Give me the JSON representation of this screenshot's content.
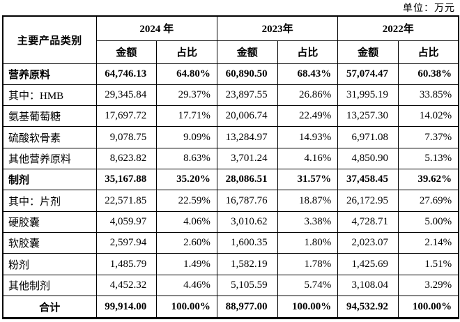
{
  "unit_label": "单位：万元",
  "table": {
    "header": {
      "category_label": "主要产品类别",
      "years": [
        "2024 年",
        "2023年",
        "2022年"
      ],
      "amount_label": "金额",
      "ratio_label": "占比"
    },
    "rows": [
      {
        "label": "营养原料",
        "values": [
          "64,746.13",
          "64.80%",
          "60,890.50",
          "68.43%",
          "57,074.47",
          "60.38%"
        ]
      },
      {
        "label": "其中：HMB",
        "values": [
          "29,345.84",
          "29.37%",
          "23,897.55",
          "26.86%",
          "31,995.19",
          "33.85%"
        ]
      },
      {
        "label": "氨基葡萄糖",
        "values": [
          "17,697.72",
          "17.71%",
          "20,006.74",
          "22.49%",
          "13,257.30",
          "14.02%"
        ]
      },
      {
        "label": "硫酸软骨素",
        "values": [
          "9,078.75",
          "9.09%",
          "13,284.97",
          "14.93%",
          "6,971.08",
          "7.37%"
        ]
      },
      {
        "label": "其他营养原料",
        "values": [
          "8,623.82",
          "8.63%",
          "3,701.24",
          "4.16%",
          "4,850.90",
          "5.13%"
        ]
      },
      {
        "label": "制剂",
        "values": [
          "35,167.88",
          "35.20%",
          "28,086.51",
          "31.57%",
          "37,458.45",
          "39.62%"
        ]
      },
      {
        "label": "其中：片剂",
        "values": [
          "22,571.85",
          "22.59%",
          "16,787.76",
          "18.87%",
          "26,172.95",
          "27.69%"
        ]
      },
      {
        "label": "硬胶囊",
        "values": [
          "4,059.97",
          "4.06%",
          "3,010.62",
          "3.38%",
          "4,728.71",
          "5.00%"
        ]
      },
      {
        "label": "软胶囊",
        "values": [
          "2,597.94",
          "2.60%",
          "1,600.35",
          "1.80%",
          "2,023.07",
          "2.14%"
        ]
      },
      {
        "label": "粉剂",
        "values": [
          "1,485.79",
          "1.49%",
          "1,582.19",
          "1.78%",
          "1,425.69",
          "1.51%"
        ]
      },
      {
        "label": "其他制剂",
        "values": [
          "4,452.32",
          "4.46%",
          "5,105.59",
          "5.74%",
          "3,108.04",
          "3.29%"
        ]
      },
      {
        "label": "合计",
        "values": [
          "99,914.00",
          "100.00%",
          "88,977.00",
          "100.00%",
          "94,532.92",
          "100.00%"
        ]
      }
    ]
  }
}
